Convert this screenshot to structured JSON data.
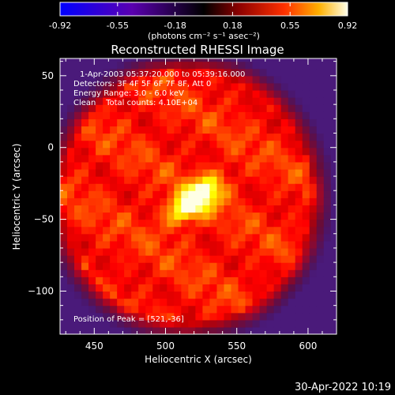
{
  "colorbar": {
    "ticks": [
      "-0.92",
      "-0.55",
      "-0.18",
      "0.18",
      "0.55",
      "0.92"
    ],
    "unit_label": "(photons cm⁻² s⁻¹ asec⁻²)"
  },
  "footer": {
    "date_stamp": "30-Apr-2022 10:19"
  },
  "chart_data": {
    "type": "heatmap",
    "title": "Reconstructed RHESSI Image",
    "xlabel": "Heliocentric X (arcsec)",
    "ylabel": "Heliocentric Y (arcsec)",
    "xlim": [
      426,
      620
    ],
    "ylim": [
      -130,
      62
    ],
    "xticks": [
      "450",
      "500",
      "550",
      "600"
    ],
    "xtick_values": [
      450,
      500,
      550,
      600
    ],
    "yticks": [
      "50",
      "0",
      "−50",
      "−100"
    ],
    "ytick_values": [
      50,
      0,
      -50,
      -100
    ],
    "colormap": "hot",
    "value_range": [
      -0.92,
      0.92
    ],
    "peak": [
      521,
      -36
    ],
    "disk_center": [
      515,
      -34
    ],
    "disk_radius_arcsec": 88,
    "annotations": {
      "time_range": "1-Apr-2003 05:37:20.000 to 05:39:16.000",
      "detectors": "Detectors: 3F 4F 5F 6F 7F 8F, Att 0",
      "energy": "Energy Range: 3.0 - 6.0 keV",
      "method": "Clean    Total counts: 4.10E+04",
      "peak_label": "Position of Peak = [521,-36]"
    }
  }
}
